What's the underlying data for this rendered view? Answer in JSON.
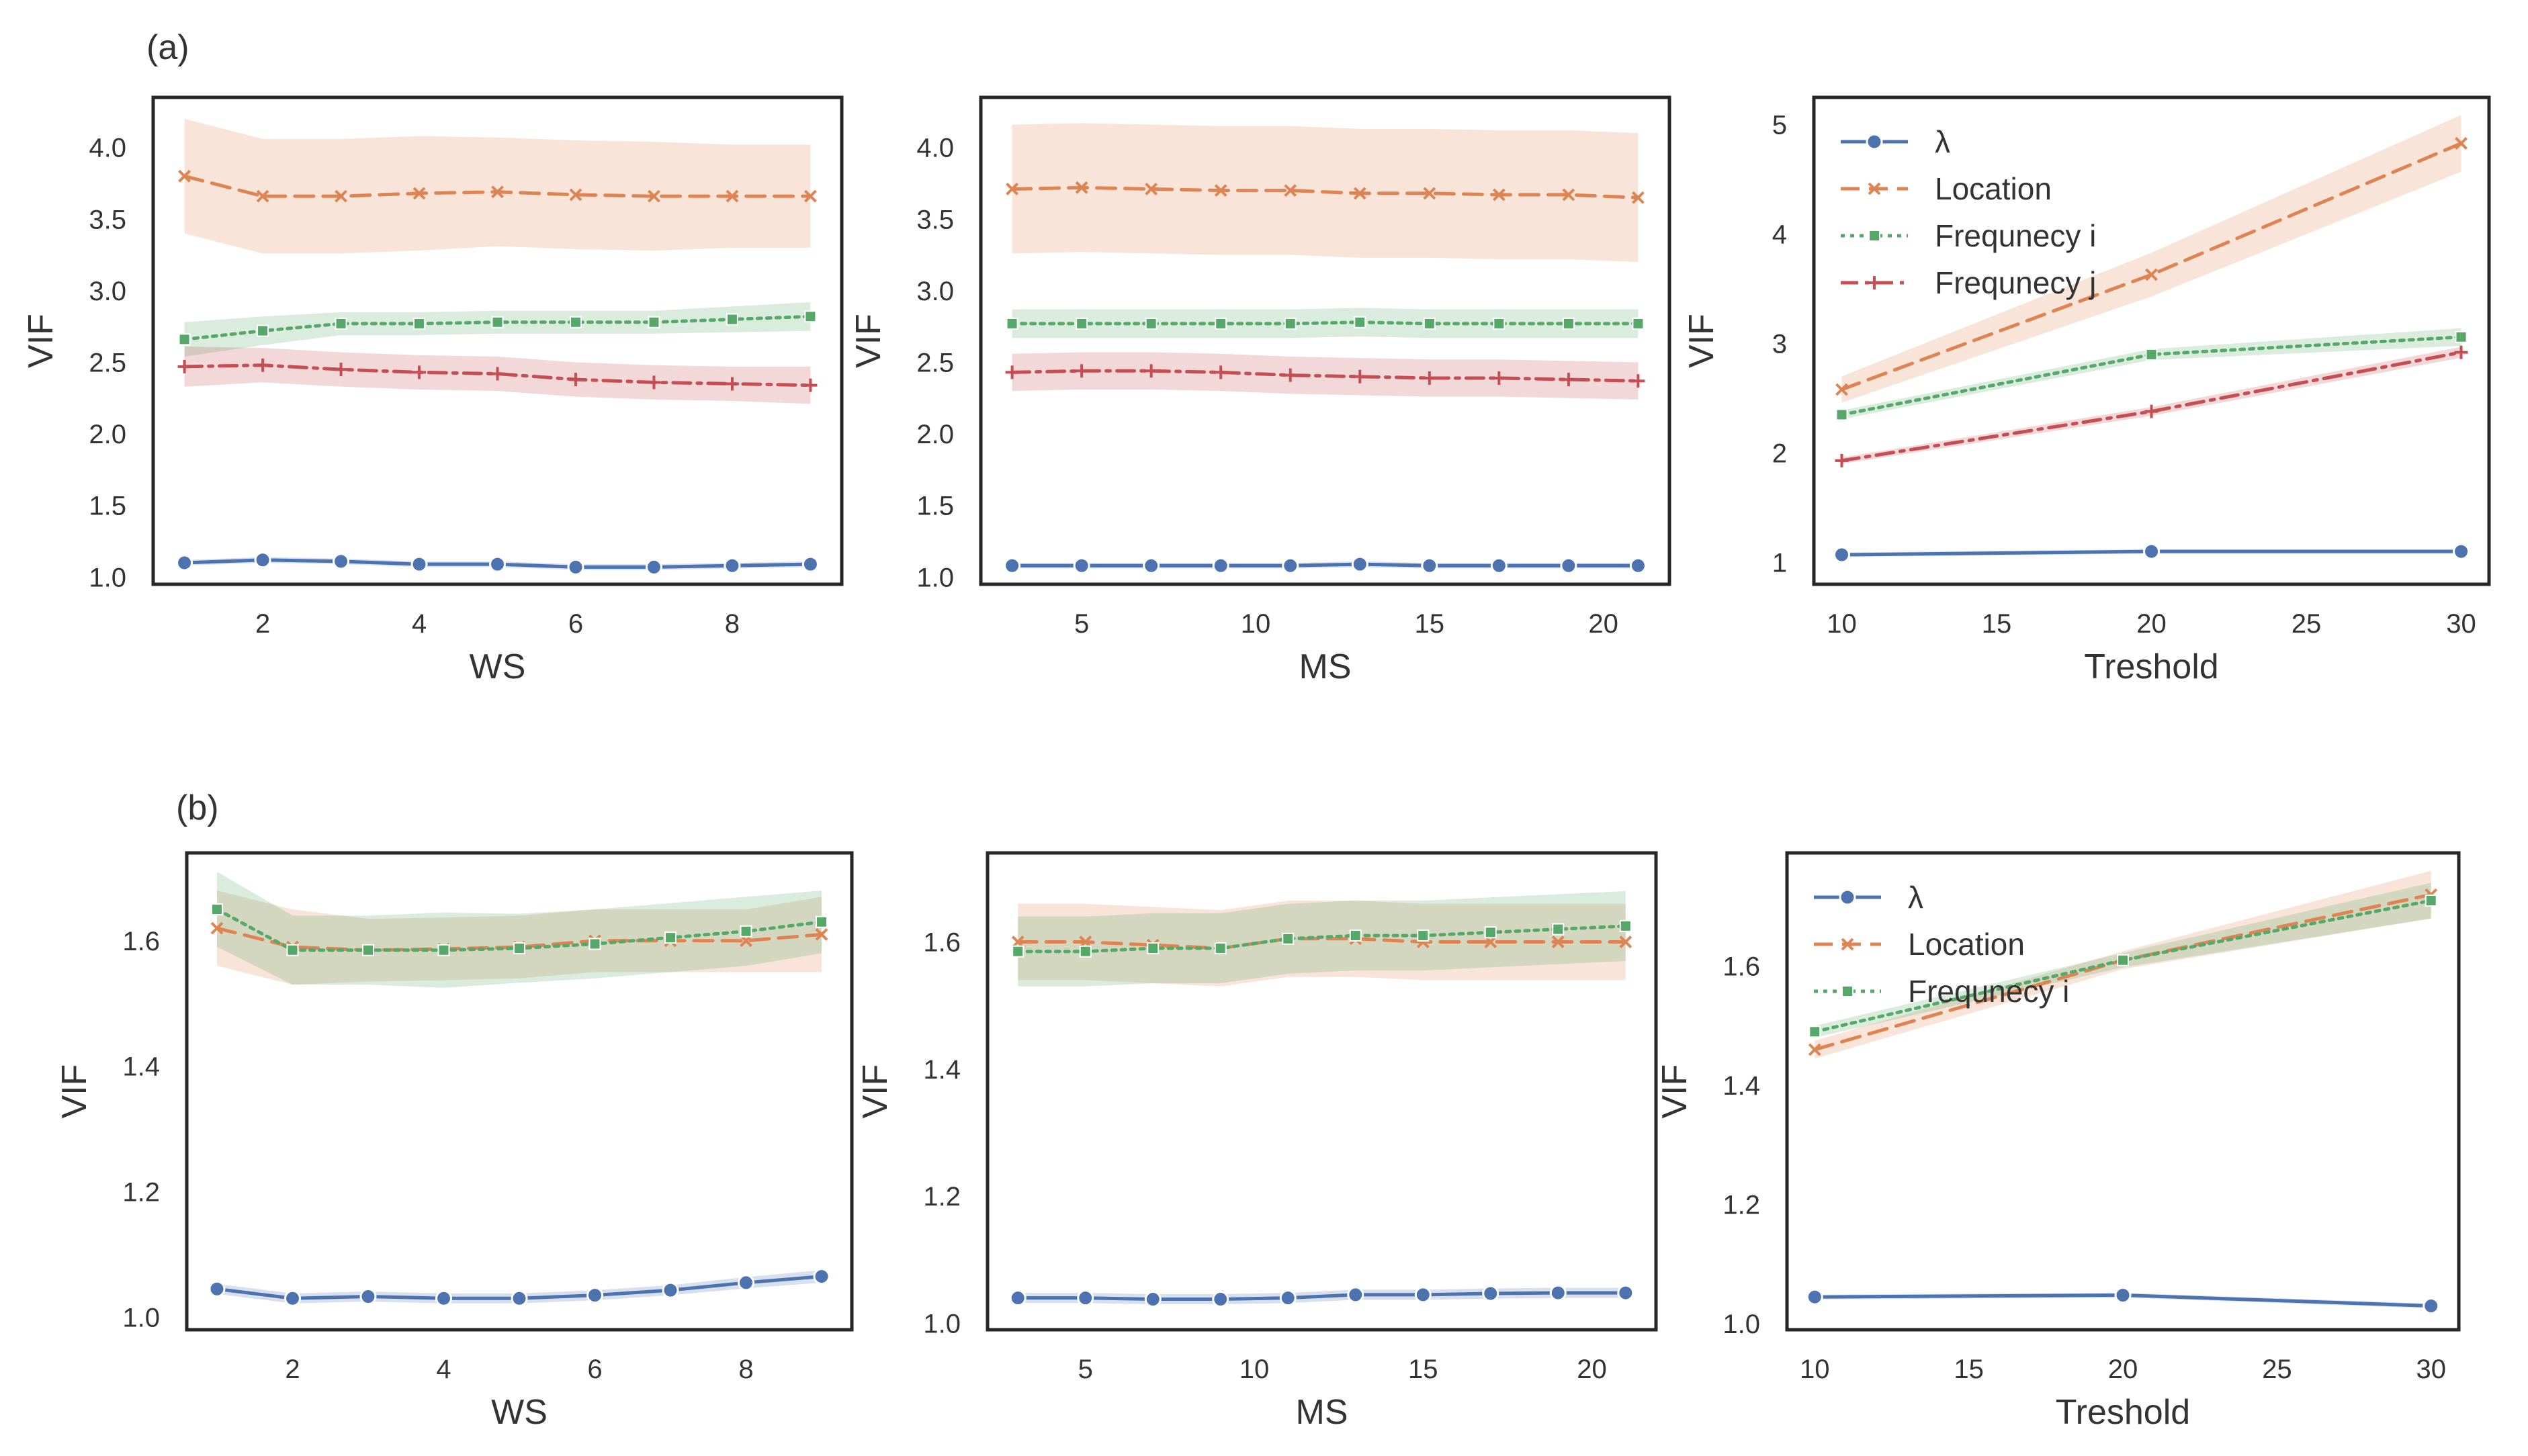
{
  "panel_labels": [
    "(a)",
    "(b)"
  ],
  "colors": {
    "lambda": "#4c72b0",
    "location": "#dd8452",
    "freq_i": "#55a868",
    "freq_j": "#c44e52"
  },
  "chart_data": [
    {
      "id": "a-ws",
      "panel": "(a)",
      "type": "line",
      "xlabel": "WS",
      "ylabel": "VIF",
      "xlim": [
        0.6,
        9.4
      ],
      "ylim": [
        0.95,
        4.35
      ],
      "xticks": [
        2,
        4,
        6,
        8
      ],
      "yticks": [
        1.0,
        1.5,
        2.0,
        2.5,
        3.0,
        3.5,
        4.0
      ],
      "legend": false,
      "x": [
        1,
        2,
        3,
        4,
        5,
        6,
        7,
        8,
        9
      ],
      "series": [
        {
          "name": "λ",
          "key": "lambda",
          "marker": "circle",
          "dash": "",
          "values": [
            1.1,
            1.12,
            1.11,
            1.09,
            1.09,
            1.07,
            1.07,
            1.08,
            1.09
          ],
          "band": [
            0.02,
            0.02,
            0.02,
            0.02,
            0.02,
            0.02,
            0.02,
            0.02,
            0.02
          ]
        },
        {
          "name": "Location",
          "key": "location",
          "marker": "x",
          "dash": "28,14",
          "values": [
            3.8,
            3.66,
            3.66,
            3.68,
            3.69,
            3.67,
            3.66,
            3.66,
            3.66
          ],
          "band": [
            0.4,
            0.4,
            0.4,
            0.4,
            0.38,
            0.38,
            0.38,
            0.36,
            0.36
          ]
        },
        {
          "name": "Frequnecy i",
          "key": "freq_i",
          "marker": "square",
          "dash": "6,8",
          "values": [
            2.66,
            2.72,
            2.77,
            2.77,
            2.78,
            2.78,
            2.78,
            2.8,
            2.82
          ],
          "band": [
            0.12,
            0.1,
            0.08,
            0.08,
            0.08,
            0.08,
            0.08,
            0.09,
            0.1
          ]
        },
        {
          "name": "Frequnecy j",
          "key": "freq_j",
          "marker": "plus",
          "dash": "26,10,6,10",
          "values": [
            2.47,
            2.48,
            2.45,
            2.43,
            2.42,
            2.38,
            2.36,
            2.35,
            2.34
          ],
          "band": [
            0.14,
            0.12,
            0.12,
            0.12,
            0.12,
            0.12,
            0.12,
            0.12,
            0.13
          ]
        }
      ]
    },
    {
      "id": "a-ms",
      "panel": "(a)",
      "type": "line",
      "xlabel": "MS",
      "ylabel": "VIF",
      "xlim": [
        2.1,
        21.9
      ],
      "ylim": [
        0.95,
        4.35
      ],
      "xticks": [
        5,
        10,
        15,
        20
      ],
      "yticks": [
        1.0,
        1.5,
        2.0,
        2.5,
        3.0,
        3.5,
        4.0
      ],
      "legend": false,
      "x": [
        3,
        5,
        7,
        9,
        11,
        13,
        15,
        17,
        19,
        21
      ],
      "series": [
        {
          "name": "λ",
          "key": "lambda",
          "marker": "circle",
          "dash": "",
          "values": [
            1.08,
            1.08,
            1.08,
            1.08,
            1.08,
            1.09,
            1.08,
            1.08,
            1.08,
            1.08
          ],
          "band": [
            0.02,
            0.02,
            0.02,
            0.02,
            0.02,
            0.02,
            0.02,
            0.02,
            0.02,
            0.02
          ]
        },
        {
          "name": "Location",
          "key": "location",
          "marker": "x",
          "dash": "28,14",
          "values": [
            3.71,
            3.72,
            3.71,
            3.7,
            3.7,
            3.68,
            3.68,
            3.67,
            3.67,
            3.65
          ],
          "band": [
            0.45,
            0.45,
            0.45,
            0.45,
            0.45,
            0.45,
            0.45,
            0.45,
            0.45,
            0.45
          ]
        },
        {
          "name": "Frequnecy i",
          "key": "freq_i",
          "marker": "square",
          "dash": "6,8",
          "values": [
            2.77,
            2.77,
            2.77,
            2.77,
            2.77,
            2.78,
            2.77,
            2.77,
            2.77,
            2.77
          ],
          "band": [
            0.1,
            0.1,
            0.1,
            0.1,
            0.1,
            0.1,
            0.1,
            0.1,
            0.1,
            0.1
          ]
        },
        {
          "name": "Frequnecy j",
          "key": "freq_j",
          "marker": "plus",
          "dash": "26,10,6,10",
          "values": [
            2.43,
            2.44,
            2.44,
            2.43,
            2.41,
            2.4,
            2.39,
            2.39,
            2.38,
            2.37
          ],
          "band": [
            0.13,
            0.13,
            0.13,
            0.13,
            0.13,
            0.13,
            0.13,
            0.13,
            0.13,
            0.13
          ]
        }
      ]
    },
    {
      "id": "a-th",
      "panel": "(a)",
      "type": "line",
      "xlabel": "Treshold",
      "ylabel": "VIF",
      "xlim": [
        9.1,
        30.9
      ],
      "ylim": [
        0.8,
        5.25
      ],
      "xticks": [
        10,
        15,
        20,
        25,
        30
      ],
      "yticks": [
        1,
        2,
        3,
        4,
        5
      ],
      "legend": "top-left",
      "x": [
        10,
        20,
        30
      ],
      "series": [
        {
          "name": "λ",
          "key": "lambda",
          "marker": "circle",
          "dash": "",
          "values": [
            1.07,
            1.1,
            1.1
          ],
          "band": [
            0.02,
            0.02,
            0.02
          ]
        },
        {
          "name": "Location",
          "key": "location",
          "marker": "x",
          "dash": "28,14",
          "values": [
            2.58,
            3.63,
            4.83
          ],
          "band": [
            0.12,
            0.2,
            0.26
          ]
        },
        {
          "name": "Frequnecy i",
          "key": "freq_i",
          "marker": "square",
          "dash": "6,8",
          "values": [
            2.35,
            2.9,
            3.06
          ],
          "band": [
            0.04,
            0.05,
            0.08
          ]
        },
        {
          "name": "Frequnecy j",
          "key": "freq_j",
          "marker": "plus",
          "dash": "26,10,6,10",
          "values": [
            1.93,
            2.38,
            2.92
          ],
          "band": [
            0.03,
            0.04,
            0.05
          ]
        }
      ]
    },
    {
      "id": "b-ws",
      "panel": "(b)",
      "type": "line",
      "xlabel": "WS",
      "ylabel": "VIF",
      "xlim": [
        0.6,
        9.4
      ],
      "ylim": [
        0.98,
        1.74
      ],
      "xticks": [
        2,
        4,
        6,
        8
      ],
      "yticks": [
        1.0,
        1.2,
        1.4,
        1.6
      ],
      "legend": false,
      "x": [
        1,
        2,
        3,
        4,
        5,
        6,
        7,
        8,
        9
      ],
      "series": [
        {
          "name": "λ",
          "key": "lambda",
          "marker": "circle",
          "dash": "",
          "values": [
            1.045,
            1.03,
            1.033,
            1.03,
            1.03,
            1.035,
            1.043,
            1.055,
            1.065
          ],
          "band": [
            0.008,
            0.008,
            0.008,
            0.008,
            0.008,
            0.008,
            0.008,
            0.009,
            0.01
          ]
        },
        {
          "name": "Location",
          "key": "location",
          "marker": "x",
          "dash": "28,14",
          "values": [
            1.62,
            1.59,
            1.585,
            1.587,
            1.59,
            1.6,
            1.6,
            1.6,
            1.61
          ],
          "band": [
            0.06,
            0.06,
            0.05,
            0.05,
            0.05,
            0.05,
            0.05,
            0.05,
            0.06
          ]
        },
        {
          "name": "Frequnecy i",
          "key": "freq_i",
          "marker": "square",
          "dash": "6,8",
          "values": [
            1.65,
            1.585,
            1.585,
            1.585,
            1.588,
            1.595,
            1.605,
            1.615,
            1.63
          ],
          "band": [
            0.06,
            0.055,
            0.055,
            0.06,
            0.055,
            0.055,
            0.055,
            0.055,
            0.05
          ]
        }
      ]
    },
    {
      "id": "b-ms",
      "panel": "(b)",
      "type": "line",
      "xlabel": "MS",
      "ylabel": "VIF",
      "xlim": [
        2.1,
        21.9
      ],
      "ylim": [
        0.99,
        1.74
      ],
      "xticks": [
        5,
        10,
        15,
        20
      ],
      "yticks": [
        1.0,
        1.2,
        1.4,
        1.6
      ],
      "legend": false,
      "x": [
        3,
        5,
        7,
        9,
        11,
        13,
        15,
        17,
        19,
        21
      ],
      "series": [
        {
          "name": "λ",
          "key": "lambda",
          "marker": "circle",
          "dash": "",
          "values": [
            1.04,
            1.04,
            1.038,
            1.038,
            1.04,
            1.045,
            1.045,
            1.047,
            1.048,
            1.048
          ],
          "band": [
            0.008,
            0.008,
            0.008,
            0.008,
            0.008,
            0.008,
            0.008,
            0.008,
            0.008,
            0.008
          ]
        },
        {
          "name": "Location",
          "key": "location",
          "marker": "x",
          "dash": "28,14",
          "values": [
            1.6,
            1.6,
            1.595,
            1.59,
            1.605,
            1.605,
            1.6,
            1.6,
            1.6,
            1.6
          ],
          "band": [
            0.06,
            0.06,
            0.06,
            0.06,
            0.06,
            0.06,
            0.06,
            0.06,
            0.06,
            0.06
          ]
        },
        {
          "name": "Frequnecy i",
          "key": "freq_i",
          "marker": "square",
          "dash": "6,8",
          "values": [
            1.585,
            1.585,
            1.59,
            1.59,
            1.605,
            1.61,
            1.61,
            1.615,
            1.62,
            1.625
          ],
          "band": [
            0.055,
            0.055,
            0.055,
            0.055,
            0.055,
            0.055,
            0.055,
            0.055,
            0.055,
            0.055
          ]
        }
      ]
    },
    {
      "id": "b-th",
      "panel": "(b)",
      "type": "line",
      "xlabel": "Treshold",
      "ylabel": "VIF",
      "xlim": [
        9.1,
        30.9
      ],
      "ylim": [
        0.99,
        1.79
      ],
      "xticks": [
        10,
        15,
        20,
        25,
        30
      ],
      "yticks": [
        1.0,
        1.2,
        1.4,
        1.6
      ],
      "legend": "top-left",
      "x": [
        10,
        20,
        30
      ],
      "series": [
        {
          "name": "λ",
          "key": "lambda",
          "marker": "circle",
          "dash": "",
          "values": [
            1.045,
            1.048,
            1.03
          ],
          "band": [
            0.004,
            0.004,
            0.004
          ]
        },
        {
          "name": "Location",
          "key": "location",
          "marker": "x",
          "dash": "28,14",
          "values": [
            1.46,
            1.61,
            1.72
          ],
          "band": [
            0.015,
            0.015,
            0.04
          ]
        },
        {
          "name": "Frequnecy i",
          "key": "freq_i",
          "marker": "square",
          "dash": "6,8",
          "values": [
            1.49,
            1.61,
            1.71
          ],
          "band": [
            0.01,
            0.012,
            0.03
          ]
        }
      ]
    }
  ]
}
